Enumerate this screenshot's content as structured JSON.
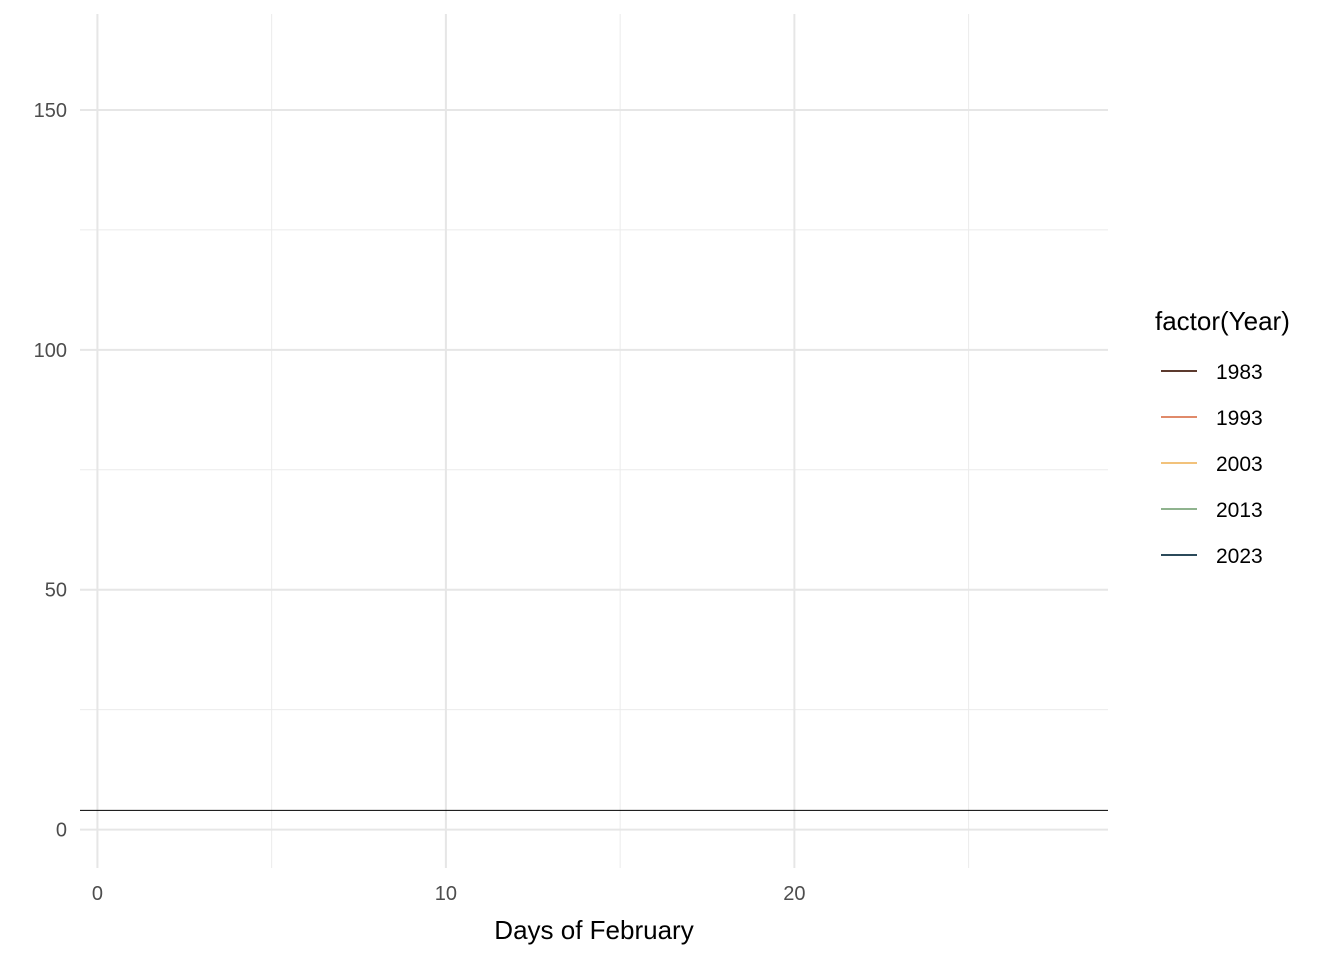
{
  "chart_data": {
    "type": "line",
    "title": "",
    "xlabel": "Days of February",
    "ylabel": "",
    "xlim": [
      -0.5,
      29
    ],
    "ylim": [
      -8,
      170
    ],
    "x_ticks": [
      0,
      10,
      20
    ],
    "x_tick_labels": [
      "0",
      "10",
      "20"
    ],
    "x_minor_ticks": [
      5,
      15,
      25
    ],
    "y_ticks": [
      0,
      50,
      100,
      150
    ],
    "y_tick_labels": [
      "0",
      "50",
      "100",
      "150"
    ],
    "y_minor_ticks": [
      25,
      75,
      125
    ],
    "grid": true,
    "reference_line": {
      "y": 4,
      "color": "#000000"
    },
    "legend": {
      "title": "factor(Year)",
      "position": "right"
    },
    "series": [
      {
        "name": "1983",
        "color": "#5c3a2e",
        "x": [],
        "y": []
      },
      {
        "name": "1993",
        "color": "#e08a6a",
        "x": [],
        "y": []
      },
      {
        "name": "2003",
        "color": "#f2c27b",
        "x": [],
        "y": []
      },
      {
        "name": "2013",
        "color": "#8fb38e",
        "x": [],
        "y": []
      },
      {
        "name": "2023",
        "color": "#2b4a5a",
        "x": [],
        "y": []
      }
    ]
  }
}
